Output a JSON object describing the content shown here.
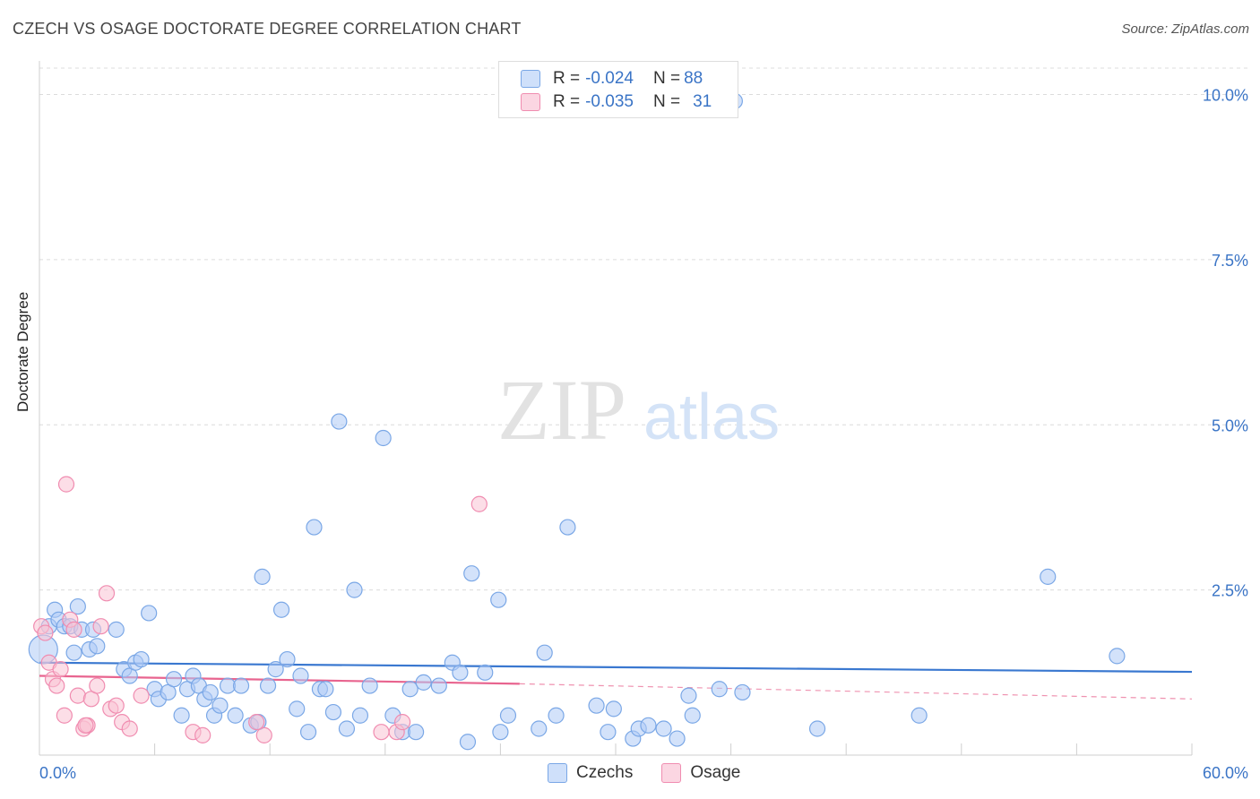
{
  "header": {
    "title": "CZECH VS OSAGE DOCTORATE DEGREE CORRELATION CHART",
    "source": "Source: ZipAtlas.com"
  },
  "watermark": {
    "part1": "ZIP",
    "part2": "atlas"
  },
  "legend": {
    "rows": [
      {
        "r_label": "R = ",
        "r_value": "-0.024",
        "n_label": "N = ",
        "n_value": "88",
        "color": "#aecbf5"
      },
      {
        "r_label": "R = ",
        "r_value": "-0.035",
        "n_label": "N = ",
        "n_value": "31",
        "color": "#f9c3d4"
      }
    ]
  },
  "bottom_legend": [
    {
      "label": "Czechs",
      "color": "#aecbf5"
    },
    {
      "label": "Osage",
      "color": "#f9c3d4"
    }
  ],
  "chart_data": {
    "type": "scatter",
    "title": "CZECH VS OSAGE DOCTORATE DEGREE CORRELATION CHART",
    "xlabel": "",
    "ylabel": "Doctorate Degree",
    "xlim": [
      0,
      60
    ],
    "ylim": [
      0,
      10.4
    ],
    "x_tick_labels": [
      "0.0%",
      "60.0%"
    ],
    "y_ticks": [
      2.5,
      5.0,
      7.5,
      10.0
    ],
    "y_tick_labels": [
      "2.5%",
      "5.0%",
      "7.5%",
      "10.0%"
    ],
    "grid": true,
    "series": [
      {
        "name": "Czechs",
        "color": "#7aa7e6",
        "fill": "#aecbf5",
        "trend": {
          "x0": 0,
          "y0": 1.4,
          "x1": 60,
          "y1": 1.26,
          "color": "#3a78d0"
        },
        "points": [
          [
            0.2,
            1.6
          ],
          [
            0.5,
            1.95
          ],
          [
            0.8,
            2.2
          ],
          [
            1.0,
            2.05
          ],
          [
            1.3,
            1.95
          ],
          [
            1.6,
            1.95
          ],
          [
            1.8,
            1.55
          ],
          [
            2.0,
            2.25
          ],
          [
            2.2,
            1.9
          ],
          [
            2.6,
            1.6
          ],
          [
            2.8,
            1.9
          ],
          [
            3.0,
            1.65
          ],
          [
            4.0,
            1.9
          ],
          [
            4.4,
            1.3
          ],
          [
            4.7,
            1.2
          ],
          [
            5.0,
            1.4
          ],
          [
            5.3,
            1.45
          ],
          [
            5.7,
            2.15
          ],
          [
            6.0,
            1.0
          ],
          [
            6.2,
            0.85
          ],
          [
            6.7,
            0.95
          ],
          [
            7.0,
            1.15
          ],
          [
            7.4,
            0.6
          ],
          [
            7.7,
            1.0
          ],
          [
            8.0,
            1.2
          ],
          [
            8.3,
            1.05
          ],
          [
            8.6,
            0.85
          ],
          [
            8.9,
            0.95
          ],
          [
            9.1,
            0.6
          ],
          [
            9.4,
            0.75
          ],
          [
            9.8,
            1.05
          ],
          [
            10.2,
            0.6
          ],
          [
            10.5,
            1.05
          ],
          [
            11.0,
            0.45
          ],
          [
            11.4,
            0.5
          ],
          [
            11.6,
            2.7
          ],
          [
            11.9,
            1.05
          ],
          [
            12.3,
            1.3
          ],
          [
            12.6,
            2.2
          ],
          [
            12.9,
            1.45
          ],
          [
            13.4,
            0.7
          ],
          [
            13.6,
            1.2
          ],
          [
            14.0,
            0.35
          ],
          [
            14.3,
            3.45
          ],
          [
            14.6,
            1.0
          ],
          [
            14.9,
            1.0
          ],
          [
            15.3,
            0.65
          ],
          [
            15.6,
            5.05
          ],
          [
            16.0,
            0.4
          ],
          [
            16.4,
            2.5
          ],
          [
            16.7,
            0.6
          ],
          [
            17.2,
            1.05
          ],
          [
            17.9,
            4.8
          ],
          [
            18.4,
            0.6
          ],
          [
            18.9,
            0.35
          ],
          [
            19.3,
            1.0
          ],
          [
            19.6,
            0.35
          ],
          [
            20.0,
            1.1
          ],
          [
            20.8,
            1.05
          ],
          [
            21.5,
            1.4
          ],
          [
            21.9,
            1.25
          ],
          [
            22.3,
            0.2
          ],
          [
            22.5,
            2.75
          ],
          [
            23.2,
            1.25
          ],
          [
            23.9,
            2.35
          ],
          [
            24.0,
            0.35
          ],
          [
            24.4,
            0.6
          ],
          [
            26.0,
            0.4
          ],
          [
            26.3,
            1.55
          ],
          [
            26.9,
            0.6
          ],
          [
            27.5,
            3.45
          ],
          [
            29.0,
            0.75
          ],
          [
            29.6,
            0.35
          ],
          [
            29.9,
            0.7
          ],
          [
            30.9,
            0.25
          ],
          [
            31.2,
            0.4
          ],
          [
            31.7,
            0.45
          ],
          [
            32.5,
            0.4
          ],
          [
            33.2,
            0.25
          ],
          [
            33.8,
            0.9
          ],
          [
            34.0,
            0.6
          ],
          [
            35.4,
            1.0
          ],
          [
            36.6,
            0.95
          ],
          [
            36.2,
            9.9
          ],
          [
            40.5,
            0.4
          ],
          [
            45.8,
            0.6
          ],
          [
            52.5,
            2.7
          ],
          [
            56.1,
            1.5
          ]
        ]
      },
      {
        "name": "Osage",
        "color": "#f08cb0",
        "fill": "#f9c3d4",
        "trend": {
          "x0": 0,
          "y0": 1.2,
          "x1": 25,
          "y1": 1.08,
          "dash_x1": 60,
          "dash_y1": 0.85,
          "color": "#e8648f"
        },
        "points": [
          [
            0.1,
            1.95
          ],
          [
            0.3,
            1.85
          ],
          [
            0.5,
            1.4
          ],
          [
            0.7,
            1.15
          ],
          [
            0.9,
            1.05
          ],
          [
            1.1,
            1.3
          ],
          [
            1.3,
            0.6
          ],
          [
            1.6,
            2.05
          ],
          [
            1.8,
            1.9
          ],
          [
            2.0,
            0.9
          ],
          [
            2.3,
            0.4
          ],
          [
            2.5,
            0.45
          ],
          [
            2.7,
            0.85
          ],
          [
            3.0,
            1.05
          ],
          [
            3.2,
            1.95
          ],
          [
            3.5,
            2.45
          ],
          [
            3.7,
            0.7
          ],
          [
            4.0,
            0.75
          ],
          [
            4.3,
            0.5
          ],
          [
            4.7,
            0.4
          ],
          [
            5.3,
            0.9
          ],
          [
            8.0,
            0.35
          ],
          [
            8.5,
            0.3
          ],
          [
            11.3,
            0.5
          ],
          [
            11.7,
            0.3
          ],
          [
            17.8,
            0.35
          ],
          [
            18.6,
            0.35
          ],
          [
            18.9,
            0.5
          ],
          [
            22.9,
            3.8
          ],
          [
            1.4,
            4.1
          ],
          [
            2.4,
            0.45
          ]
        ]
      }
    ]
  }
}
